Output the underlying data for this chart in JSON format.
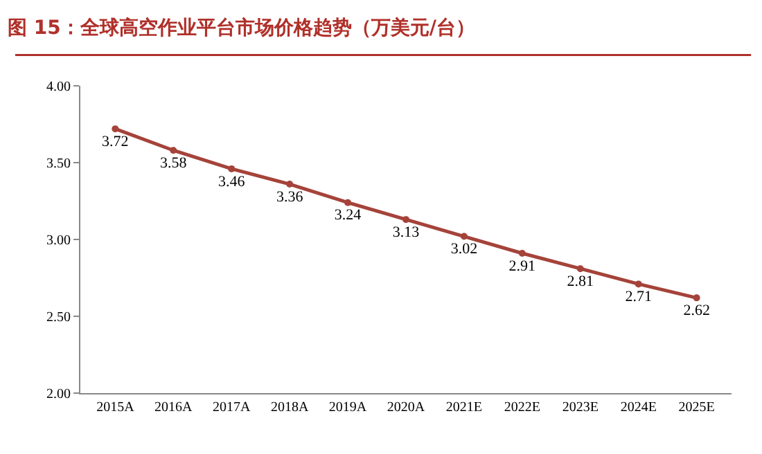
{
  "chart_data": {
    "type": "line",
    "title": "图 15：全球高空作业平台市场价格趋势（万美元/台）",
    "categories": [
      "2015A",
      "2016A",
      "2017A",
      "2018A",
      "2019A",
      "2020A",
      "2021E",
      "2022E",
      "2023E",
      "2024E",
      "2025E"
    ],
    "series": [
      {
        "color": "#a5433a",
        "values": [
          3.72,
          3.58,
          3.46,
          3.36,
          3.24,
          3.13,
          3.02,
          2.91,
          2.81,
          2.71,
          2.62
        ]
      }
    ],
    "ylim": [
      2.0,
      4.0
    ],
    "yticks": [
      {
        "value": 2,
        "label": "2.00"
      },
      {
        "value": 2.5,
        "label": "2.50"
      },
      {
        "value": 3,
        "label": "3.00"
      },
      {
        "value": 3.5,
        "label": "3.50"
      },
      {
        "value": 4,
        "label": "4.00"
      }
    ],
    "data_labels": true,
    "marker": "circle",
    "line_style": "solid",
    "grid": false
  }
}
